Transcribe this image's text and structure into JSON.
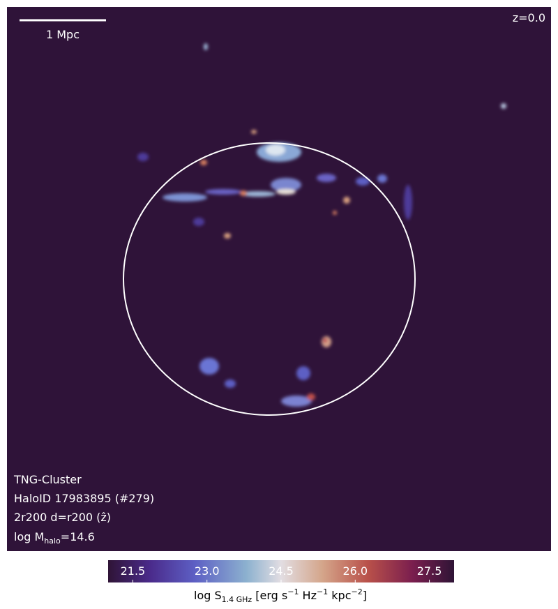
{
  "scale_bar": "1 Mpc",
  "redshift": "z=0.0",
  "info": [
    "TNG-Cluster",
    "HaloID 17983895 (#279)",
    "2r200 d=r200 (ẑ)"
  ],
  "mass_label": [
    "log M",
    "halo",
    "=14.6"
  ],
  "colorbar": {
    "range": [
      21,
      28
    ],
    "ticks": [
      21.5,
      {
        "value": 23,
        "label": "23.0"
      },
      24.5,
      {
        "value": 26,
        "label": "26.0"
      },
      27.5
    ],
    "label": [
      "log S",
      "1.4 GHz",
      " [erg s",
      "−1",
      " Hz",
      "−1",
      " kpc",
      "−2",
      "]"
    ]
  }
}
